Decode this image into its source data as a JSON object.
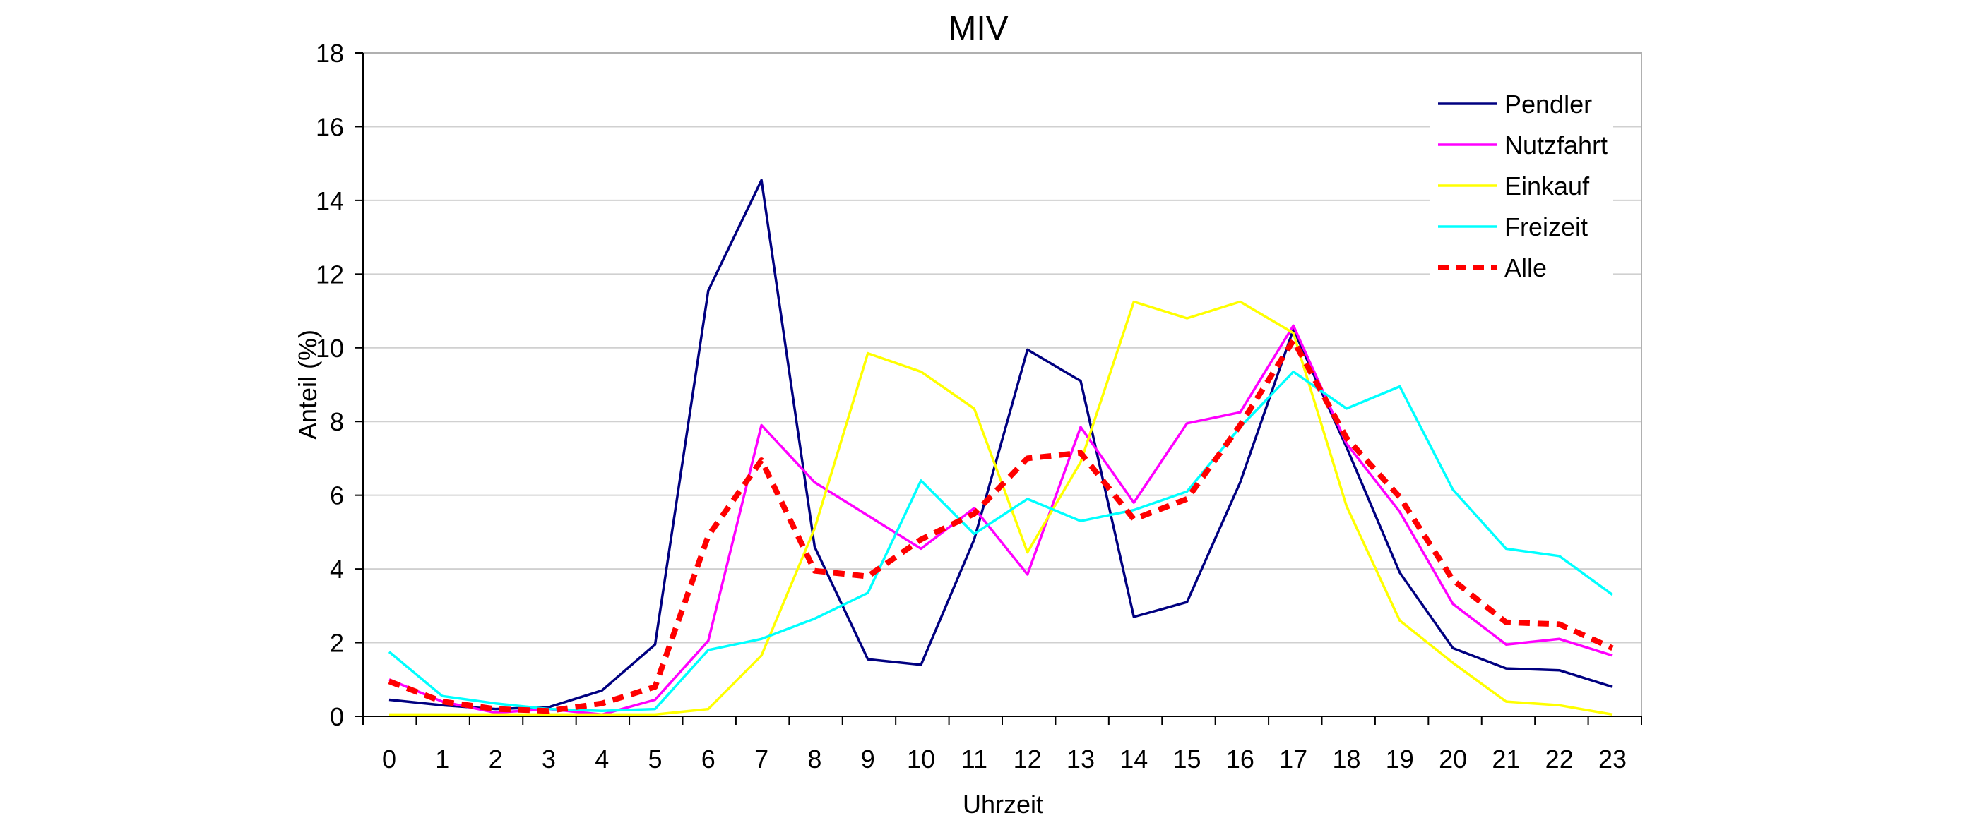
{
  "chart_data": {
    "type": "line",
    "title": "MIV",
    "xlabel": "Uhrzeit",
    "ylabel": "Anteil (%)",
    "categories": [
      "0",
      "1",
      "2",
      "3",
      "4",
      "5",
      "6",
      "7",
      "8",
      "9",
      "10",
      "11",
      "12",
      "13",
      "14",
      "15",
      "16",
      "17",
      "18",
      "19",
      "20",
      "21",
      "22",
      "23"
    ],
    "ylim": [
      0,
      18
    ],
    "yticks": [
      0,
      2,
      4,
      6,
      8,
      10,
      12,
      14,
      16,
      18
    ],
    "grid": true,
    "legend_position": "top-right",
    "series": [
      {
        "name": "Pendler",
        "color": "#000080",
        "dashed": false,
        "values": [
          0.45,
          0.3,
          0.2,
          0.25,
          0.7,
          1.95,
          11.55,
          14.55,
          4.6,
          1.55,
          1.4,
          4.8,
          9.95,
          9.1,
          2.7,
          3.1,
          6.35,
          10.5,
          7.3,
          3.9,
          1.85,
          1.3,
          1.25,
          0.8
        ]
      },
      {
        "name": "Nutzfahrt",
        "color": "#ff00ff",
        "dashed": false,
        "values": [
          1.0,
          0.4,
          0.1,
          0.2,
          0.05,
          0.45,
          2.05,
          7.9,
          6.35,
          5.45,
          4.55,
          5.65,
          3.85,
          7.85,
          5.8,
          7.95,
          8.25,
          10.6,
          7.4,
          5.55,
          3.05,
          1.95,
          2.1,
          1.65
        ]
      },
      {
        "name": "Einkauf",
        "color": "#ffff00",
        "dashed": false,
        "values": [
          0.05,
          0.05,
          0.05,
          0.05,
          0.05,
          0.05,
          0.2,
          1.65,
          5.1,
          9.85,
          9.35,
          8.35,
          4.45,
          6.9,
          11.25,
          10.8,
          11.25,
          10.4,
          5.7,
          2.6,
          1.45,
          0.4,
          0.3,
          0.05
        ]
      },
      {
        "name": "Freizeit",
        "color": "#00ffff",
        "dashed": false,
        "values": [
          1.75,
          0.55,
          0.35,
          0.2,
          0.15,
          0.2,
          1.8,
          2.1,
          2.65,
          3.35,
          6.4,
          4.95,
          5.9,
          5.3,
          5.6,
          6.1,
          7.85,
          9.35,
          8.35,
          8.95,
          6.15,
          4.55,
          4.35,
          3.3
        ]
      },
      {
        "name": "Alle",
        "color": "#ff0000",
        "dashed": true,
        "values": [
          0.95,
          0.4,
          0.2,
          0.15,
          0.35,
          0.8,
          4.9,
          6.95,
          3.95,
          3.8,
          4.8,
          5.5,
          7.0,
          7.15,
          5.35,
          5.9,
          7.9,
          10.2,
          7.55,
          5.95,
          3.7,
          2.55,
          2.5,
          1.85
        ]
      }
    ]
  }
}
